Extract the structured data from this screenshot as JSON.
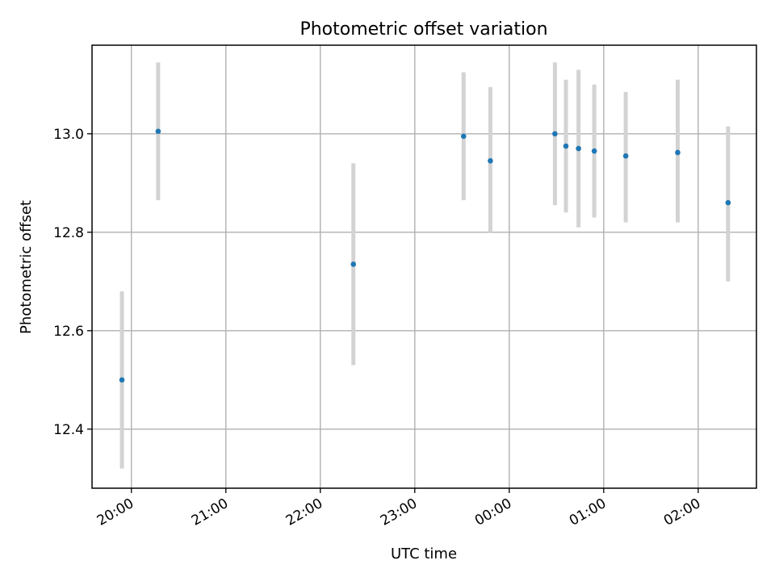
{
  "chart_data": {
    "type": "scatter",
    "title": "Photometric offset variation",
    "xlabel": "UTC time",
    "ylabel": "Photometric offset",
    "x_unit": "time (HH:MM, UTC), spans midnight",
    "x_ticks": [
      "20:00",
      "21:00",
      "22:00",
      "23:00",
      "00:00",
      "01:00",
      "02:00"
    ],
    "y_ticks": [
      "12.4",
      "12.6",
      "12.8",
      "13.0"
    ],
    "xlim": [
      "19:35",
      "02:37"
    ],
    "ylim": [
      12.28,
      13.18
    ],
    "grid": true,
    "marker_color": "#1f77b4",
    "errorbar_color": "#d3d3d3",
    "points": [
      {
        "x": "19:54",
        "y": 12.5,
        "y_low": 12.32,
        "y_high": 12.68
      },
      {
        "x": "20:17",
        "y": 13.005,
        "y_low": 12.865,
        "y_high": 13.145
      },
      {
        "x": "22:21",
        "y": 12.735,
        "y_low": 12.53,
        "y_high": 12.94
      },
      {
        "x": "23:31",
        "y": 12.995,
        "y_low": 12.865,
        "y_high": 13.125
      },
      {
        "x": "23:48",
        "y": 12.945,
        "y_low": 12.8,
        "y_high": 13.095
      },
      {
        "x": "00:29",
        "y": 13.0,
        "y_low": 12.855,
        "y_high": 13.145
      },
      {
        "x": "00:36",
        "y": 12.975,
        "y_low": 12.84,
        "y_high": 13.11
      },
      {
        "x": "00:44",
        "y": 12.97,
        "y_low": 12.81,
        "y_high": 13.13
      },
      {
        "x": "00:54",
        "y": 12.965,
        "y_low": 12.83,
        "y_high": 13.1
      },
      {
        "x": "01:14",
        "y": 12.955,
        "y_low": 12.82,
        "y_high": 13.085
      },
      {
        "x": "01:47",
        "y": 12.962,
        "y_low": 12.82,
        "y_high": 13.11
      },
      {
        "x": "02:19",
        "y": 12.86,
        "y_low": 12.7,
        "y_high": 13.015
      }
    ]
  }
}
